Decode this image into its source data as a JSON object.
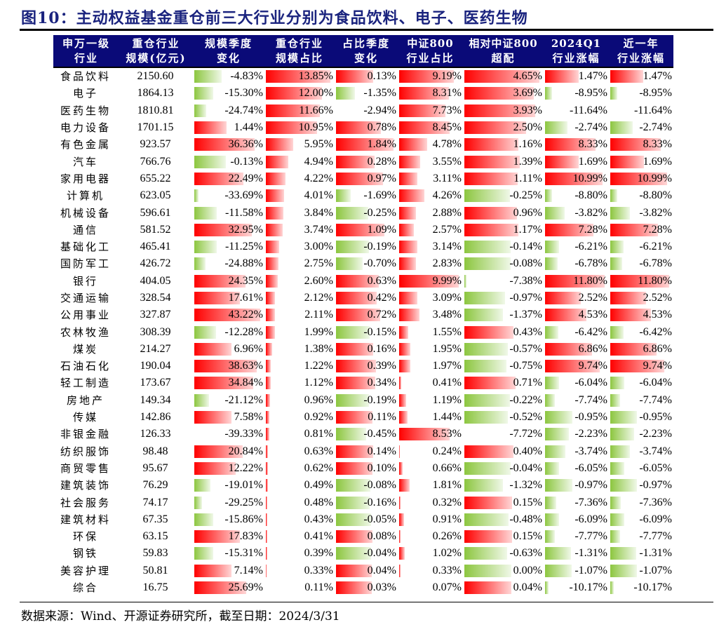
{
  "title": "图10：主动权益基金重仓前三大行业分别为食品饮料、电子、医药生物",
  "source": "数据来源：Wind、开源证券研究所，截至日期：2024/3/31",
  "colors": {
    "header_bg": "#0a0a78",
    "positive_bar": "#ff0000",
    "negative_bar": "#8cc63f"
  },
  "headers": [
    [
      "申万一级",
      "行业"
    ],
    [
      "重仓行业",
      "规模(亿元)"
    ],
    [
      "规模季度",
      "变化"
    ],
    [
      "重仓行业",
      "规模占比"
    ],
    [
      "占比季度",
      "变化"
    ],
    [
      "中证800",
      "行业占比"
    ],
    [
      "相对中证800",
      "超配"
    ],
    [
      "2024Q1",
      "行业涨幅"
    ],
    [
      "近一年",
      "行业涨幅"
    ]
  ],
  "rows": [
    [
      "食品饮料",
      "2150.60",
      "-4.83%",
      "13.85%",
      "0.13%",
      "9.19%",
      "4.65%",
      "1.47%",
      "1.47%"
    ],
    [
      "电子",
      "1864.13",
      "-15.30%",
      "12.00%",
      "-1.35%",
      "8.31%",
      "3.69%",
      "-8.95%",
      "-8.95%"
    ],
    [
      "医药生物",
      "1810.81",
      "-24.74%",
      "11.66%",
      "-2.94%",
      "7.73%",
      "3.93%",
      "-11.64%",
      "-11.64%"
    ],
    [
      "电力设备",
      "1701.15",
      "1.44%",
      "10.95%",
      "0.78%",
      "8.45%",
      "2.50%",
      "-2.74%",
      "-2.74%"
    ],
    [
      "有色金属",
      "923.57",
      "36.36%",
      "5.95%",
      "1.84%",
      "4.78%",
      "1.16%",
      "8.33%",
      "8.33%"
    ],
    [
      "汽车",
      "766.76",
      "-0.13%",
      "4.94%",
      "0.28%",
      "3.55%",
      "1.39%",
      "1.69%",
      "1.69%"
    ],
    [
      "家用电器",
      "655.22",
      "22.49%",
      "4.22%",
      "0.97%",
      "3.11%",
      "1.11%",
      "10.99%",
      "10.99%"
    ],
    [
      "计算机",
      "623.05",
      "-33.69%",
      "4.01%",
      "-1.69%",
      "4.26%",
      "-0.25%",
      "-8.80%",
      "-8.80%"
    ],
    [
      "机械设备",
      "596.61",
      "-11.58%",
      "3.84%",
      "-0.25%",
      "2.88%",
      "0.96%",
      "-3.82%",
      "-3.82%"
    ],
    [
      "通信",
      "581.52",
      "32.95%",
      "3.74%",
      "1.09%",
      "2.57%",
      "1.17%",
      "7.28%",
      "7.28%"
    ],
    [
      "基础化工",
      "465.41",
      "-11.25%",
      "3.00%",
      "-0.19%",
      "3.14%",
      "-0.14%",
      "-6.21%",
      "-6.21%"
    ],
    [
      "国防军工",
      "426.72",
      "-24.88%",
      "2.75%",
      "-0.70%",
      "2.83%",
      "-0.08%",
      "-6.78%",
      "-6.78%"
    ],
    [
      "银行",
      "404.05",
      "24.35%",
      "2.60%",
      "0.63%",
      "9.99%",
      "-7.38%",
      "11.80%",
      "11.80%"
    ],
    [
      "交通运输",
      "328.54",
      "17.61%",
      "2.12%",
      "0.42%",
      "3.09%",
      "-0.97%",
      "2.52%",
      "2.52%"
    ],
    [
      "公用事业",
      "327.87",
      "43.22%",
      "2.11%",
      "0.72%",
      "3.48%",
      "-1.37%",
      "4.53%",
      "4.53%"
    ],
    [
      "农林牧渔",
      "308.39",
      "-12.28%",
      "1.99%",
      "-0.15%",
      "1.55%",
      "0.43%",
      "-6.42%",
      "-6.42%"
    ],
    [
      "煤炭",
      "214.27",
      "6.96%",
      "1.38%",
      "0.16%",
      "1.95%",
      "-0.57%",
      "6.86%",
      "6.86%"
    ],
    [
      "石油石化",
      "190.04",
      "38.63%",
      "1.22%",
      "0.39%",
      "1.97%",
      "-0.75%",
      "9.74%",
      "9.74%"
    ],
    [
      "轻工制造",
      "173.67",
      "34.84%",
      "1.12%",
      "0.34%",
      "0.41%",
      "0.71%",
      "-6.04%",
      "-6.04%"
    ],
    [
      "房地产",
      "149.34",
      "-21.12%",
      "0.96%",
      "-0.19%",
      "1.19%",
      "-0.22%",
      "-7.74%",
      "-7.74%"
    ],
    [
      "传媒",
      "142.86",
      "7.58%",
      "0.92%",
      "0.11%",
      "1.44%",
      "-0.52%",
      "-0.95%",
      "-0.95%"
    ],
    [
      "非银金融",
      "126.33",
      "-39.33%",
      "0.81%",
      "-0.45%",
      "8.53%",
      "-7.72%",
      "-2.23%",
      "-2.23%"
    ],
    [
      "纺织服饰",
      "98.48",
      "20.84%",
      "0.63%",
      "0.14%",
      "0.24%",
      "0.40%",
      "-3.74%",
      "-3.74%"
    ],
    [
      "商贸零售",
      "95.67",
      "12.22%",
      "0.62%",
      "0.10%",
      "0.66%",
      "-0.04%",
      "-6.05%",
      "-6.05%"
    ],
    [
      "建筑装饰",
      "76.29",
      "-19.01%",
      "0.49%",
      "-0.08%",
      "1.81%",
      "-1.32%",
      "-0.97%",
      "-0.97%"
    ],
    [
      "社会服务",
      "74.17",
      "-29.25%",
      "0.48%",
      "-0.16%",
      "0.32%",
      "0.15%",
      "-7.36%",
      "-7.36%"
    ],
    [
      "建筑材料",
      "67.35",
      "-15.86%",
      "0.43%",
      "-0.05%",
      "0.91%",
      "-0.48%",
      "-6.09%",
      "-6.09%"
    ],
    [
      "环保",
      "63.15",
      "17.83%",
      "0.41%",
      "0.08%",
      "0.26%",
      "0.15%",
      "-7.77%",
      "-7.77%"
    ],
    [
      "钢铁",
      "59.83",
      "-15.31%",
      "0.39%",
      "-0.04%",
      "1.02%",
      "-0.63%",
      "-1.31%",
      "-1.31%"
    ],
    [
      "美容护理",
      "50.81",
      "7.14%",
      "0.33%",
      "0.04%",
      "0.33%",
      "0.00%",
      "-1.07%",
      "-1.07%"
    ],
    [
      "综合",
      "16.75",
      "25.69%",
      "0.11%",
      "0.03%",
      "0.07%",
      "0.04%",
      "-10.17%",
      "-10.17%"
    ]
  ]
}
